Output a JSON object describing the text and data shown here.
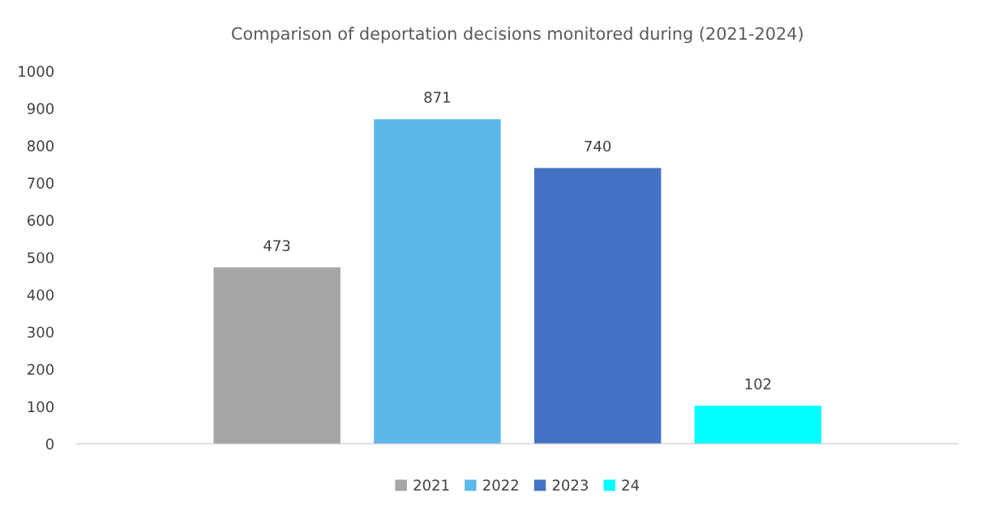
{
  "chart_data": {
    "type": "bar",
    "title": "Comparison of deportation decisions monitored during (2021-2024)",
    "categories": [
      null
    ],
    "series": [
      {
        "name": "2021",
        "color": "#a5a5a5",
        "values": [
          473
        ]
      },
      {
        "name": "2022",
        "color": "#5bb9ea",
        "values": [
          871
        ]
      },
      {
        "name": "2023",
        "color": "#4472c4",
        "values": [
          740
        ]
      },
      {
        "name": "24",
        "color": "#00ffff",
        "values": [
          102
        ]
      }
    ],
    "ylim": [
      0,
      1000
    ],
    "yticks": [
      0,
      100,
      200,
      300,
      400,
      500,
      600,
      700,
      800,
      900,
      1000
    ],
    "data_labels": true,
    "grid": false,
    "legend": "bottom"
  }
}
